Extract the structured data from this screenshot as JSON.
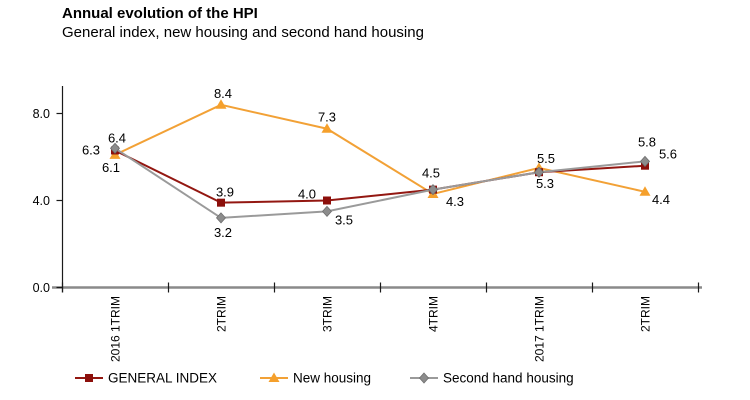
{
  "header": {
    "title": "Annual evolution of the HPI",
    "subtitle": "General index, new housing and second hand housing"
  },
  "chart_data": {
    "type": "line",
    "title": "Annual evolution of the HPI",
    "subtitle": "General index, new housing and second hand housing",
    "categories": [
      "2016 1TRIM",
      "2TRIM",
      "3TRIM",
      "4TRIM",
      "2017 1TRIM",
      "2TRIM"
    ],
    "xlabel": "",
    "ylabel": "",
    "ylim": [
      0,
      9.2
    ],
    "grid": false,
    "legend_position": "bottom",
    "yticks": [
      {
        "value": 0,
        "label": "0.0"
      },
      {
        "value": 4,
        "label": "4.0"
      },
      {
        "value": 8,
        "label": "8.0"
      }
    ],
    "colors": {
      "axis": "#1a1a1a",
      "baseline": "#8a8a8a",
      "label_text": "#000000"
    },
    "z_order": [
      1,
      0,
      2
    ],
    "series": [
      {
        "name": "GENERAL INDEX",
        "color": "#931711",
        "marker_color": "#8c0f0b",
        "marker": "square",
        "values": [
          6.3,
          3.9,
          4.0,
          4.5,
          5.3,
          5.6
        ],
        "point_labels": [
          {
            "text": "6.3",
            "dx": -24,
            "dy": 4
          },
          {
            "text": "3.9",
            "dx": 4,
            "dy": -6
          },
          {
            "text": "4.0",
            "dx": -20,
            "dy": -2
          },
          {
            "text": "4.5",
            "dx": -2,
            "dy": -12
          },
          {
            "text": "5.3",
            "dx": 6,
            "dy": 16
          },
          {
            "text": "5.6",
            "dx": 23,
            "dy": -7
          }
        ]
      },
      {
        "name": "New housing",
        "color": "#f2a136",
        "marker_color": "#f5a02c",
        "marker": "triangle",
        "values": [
          6.1,
          8.4,
          7.3,
          4.3,
          5.5,
          4.4
        ],
        "point_labels": [
          {
            "text": "6.1",
            "dx": -4,
            "dy": 17
          },
          {
            "text": "8.4",
            "dx": 2,
            "dy": -7
          },
          {
            "text": "7.3",
            "dx": 0,
            "dy": -7
          },
          {
            "text": "4.3",
            "dx": 22,
            "dy": 12
          },
          {
            "text": "5.5",
            "dx": 7,
            "dy": -5
          },
          {
            "text": "4.4",
            "dx": 16,
            "dy": 12
          }
        ]
      },
      {
        "name": "Second hand housing",
        "color": "#9a9a9a",
        "marker_color": "#8c8c8c",
        "marker": "diamond",
        "values": [
          6.4,
          3.2,
          3.5,
          4.5,
          5.3,
          5.8
        ],
        "point_labels": [
          {
            "text": "6.4",
            "dx": 2,
            "dy": -6
          },
          {
            "text": "3.2",
            "dx": 2,
            "dy": 19
          },
          {
            "text": "3.5",
            "dx": 17,
            "dy": 13
          },
          null,
          null,
          {
            "text": "5.8",
            "dx": 2,
            "dy": -15
          }
        ]
      }
    ]
  }
}
